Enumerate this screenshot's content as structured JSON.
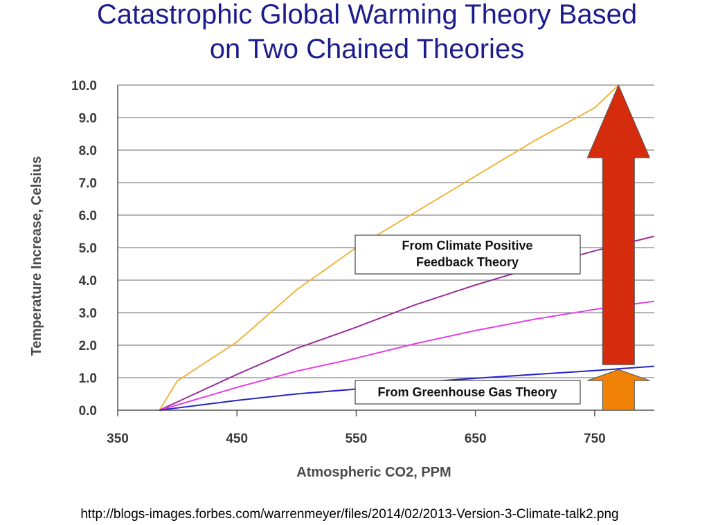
{
  "chart_data": {
    "type": "line",
    "title_lines": [
      "Catastrophic Global Warming Theory Based",
      "on Two Chained Theories"
    ],
    "xlabel": "Atmospheric CO2, PPM",
    "ylabel": "Temperature Increase, Celsius",
    "xlim": [
      350,
      800
    ],
    "ylim": [
      0,
      10
    ],
    "x_ticks": [
      "350",
      "450",
      "550",
      "650",
      "750"
    ],
    "y_ticks": [
      "0.0",
      "1.0",
      "2.0",
      "3.0",
      "4.0",
      "5.0",
      "6.0",
      "7.0",
      "8.0",
      "9.0",
      "10.0"
    ],
    "grid": true,
    "series": [
      {
        "color": "#f0b43c",
        "x": [
          385,
          400,
          450,
          500,
          550,
          600,
          650,
          700,
          750,
          770
        ],
        "y": [
          0,
          0.9,
          2.1,
          3.7,
          5.0,
          6.1,
          7.2,
          8.3,
          9.3,
          10.0
        ]
      },
      {
        "color": "#9a2d9a",
        "x": [
          385,
          450,
          500,
          550,
          600,
          650,
          700,
          750,
          800
        ],
        "y": [
          0,
          1.1,
          1.9,
          2.55,
          3.25,
          3.85,
          4.4,
          4.9,
          5.35
        ]
      },
      {
        "color": "#e43ee4",
        "x": [
          385,
          450,
          500,
          550,
          600,
          650,
          700,
          750,
          800
        ],
        "y": [
          0,
          0.7,
          1.2,
          1.6,
          2.05,
          2.45,
          2.8,
          3.1,
          3.35
        ]
      },
      {
        "color": "#2424c8",
        "x": [
          385,
          450,
          500,
          550,
          600,
          650,
          700,
          750,
          800
        ],
        "y": [
          0,
          0.3,
          0.5,
          0.65,
          0.85,
          0.98,
          1.1,
          1.22,
          1.35
        ]
      }
    ],
    "annotations": {
      "feedback_box": [
        "From Climate Positive",
        "Feedback Theory"
      ],
      "greenhouse_box": "From Greenhouse Gas Theory"
    },
    "arrows": {
      "red": {
        "color": "#d42c0c",
        "x": 770,
        "y_from": 1.4,
        "y_to": 10.0
      },
      "orange": {
        "color": "#f08208",
        "x": 770,
        "y_from": 0.0,
        "y_to": 1.25
      }
    }
  },
  "source_url": "http://blogs-images.forbes.com/warrenmeyer/files/2014/02/2013-Version-3-Climate-talk2.png"
}
